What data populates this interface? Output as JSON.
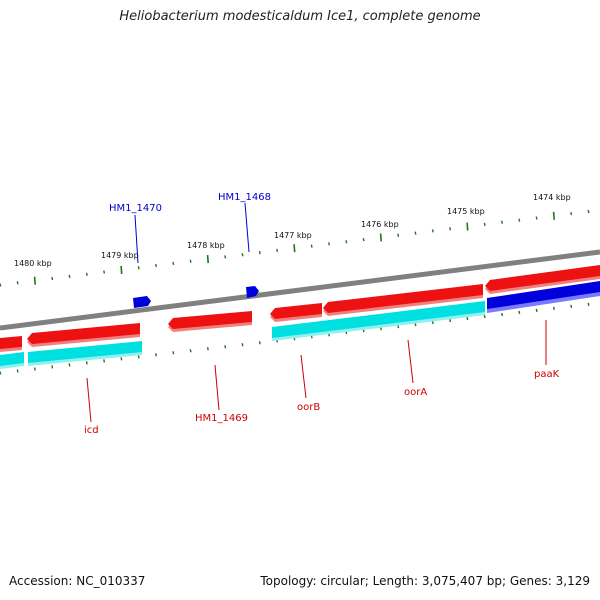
{
  "title": "Heliobacterium modesticaldum Ice1, complete genome",
  "footer": {
    "accession": "Accession: NC_010337",
    "topology": "Topology: circular; Length: 3,075,407 bp; Genes: 3,129"
  },
  "colors": {
    "backbone": "#808080",
    "fwd_red": "#ee1111",
    "rev_cyan": "#00e0e0",
    "blue": "#0000dd",
    "label_blue": "#0000cc",
    "label_red": "#cc0000",
    "tick_green": "#1a7a1a"
  },
  "kbp_labels": [
    "1480 kbp",
    "1479 kbp",
    "1478 kbp",
    "1477 kbp",
    "1476 kbp",
    "1475 kbp",
    "1474 kbp"
  ],
  "gene_labels": {
    "top": [
      "HM1_1470",
      "HM1_1468"
    ],
    "bottom": [
      "icd",
      "HM1_1469",
      "oorB",
      "oorA",
      "paaK"
    ]
  }
}
